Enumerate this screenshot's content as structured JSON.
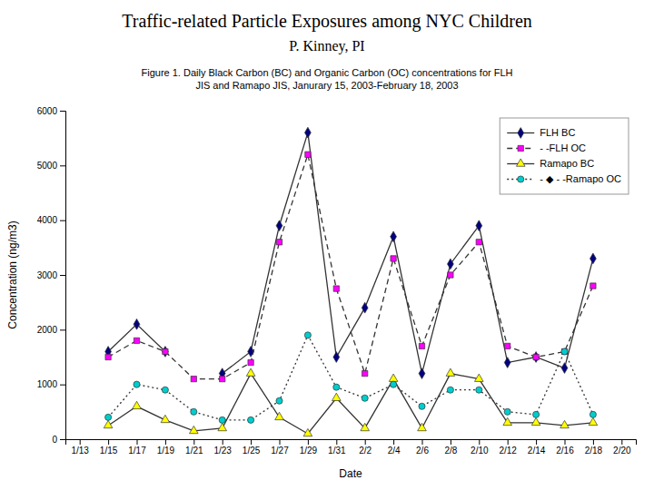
{
  "chart_data": {
    "type": "line",
    "title": "Traffic-related Particle Exposures among NYC Children",
    "subtitle": "P. Kinney, PI",
    "annotations": [
      "Figure 1. Daily Black Carbon (BC) and Organic Carbon (OC) concentrations for FLH\nJIS and Ramapo JIS, Janurary 15, 2003-February 18, 2003"
    ],
    "x_label": "Date",
    "y_label": "Concentration (ng/m3)",
    "categories": [
      "1/13",
      "1/15",
      "1/17",
      "1/19",
      "1/21",
      "1/23",
      "1/25",
      "1/27",
      "1/29",
      "1/31",
      "2/2",
      "2/4",
      "2/6",
      "2/8",
      "2/10",
      "2/12",
      "2/14",
      "2/16",
      "2/18",
      "2/20"
    ],
    "series": [
      {
        "name": "FLH BC",
        "color": "#000080",
        "marker": "diamond",
        "line_style": "solid",
        "values": [
          null,
          1600,
          2100,
          1600,
          null,
          1200,
          1600,
          3900,
          5600,
          1500,
          2400,
          3700,
          1200,
          3200,
          3900,
          1400,
          1500,
          1300,
          3300,
          null
        ]
      },
      {
        "name": "- -FLH OC",
        "color": "#FF00FF",
        "marker": "square",
        "line_style": "dashed",
        "values": [
          null,
          1500,
          1800,
          1600,
          1100,
          1100,
          1400,
          3600,
          5200,
          2750,
          1200,
          3300,
          1700,
          3000,
          3600,
          1700,
          1500,
          1600,
          2800,
          null
        ]
      },
      {
        "name": "Ramapo BC",
        "color": "#FFFF00",
        "marker": "triangle",
        "line_style": "solid",
        "values": [
          null,
          250,
          600,
          350,
          150,
          200,
          1200,
          400,
          100,
          750,
          200,
          1100,
          200,
          1200,
          1100,
          300,
          300,
          250,
          300,
          null
        ]
      },
      {
        "name": "- ◆ - -Ramapo OC",
        "color": "#00CDCD",
        "marker": "circle",
        "line_style": "dotted",
        "values": [
          null,
          400,
          1000,
          900,
          500,
          350,
          350,
          700,
          1900,
          950,
          750,
          1000,
          600,
          900,
          900,
          500,
          450,
          1600,
          450,
          null
        ]
      }
    ],
    "ylim": [
      0,
      6000
    ],
    "yticks": [
      0,
      1000,
      2000,
      3000,
      4000,
      5000,
      6000
    ],
    "grid": false,
    "legend": "upper right"
  }
}
